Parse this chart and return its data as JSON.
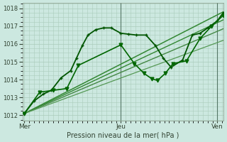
{
  "bg_color": "#cce8e0",
  "grid_color": "#aaccbb",
  "ylabel_ticks": [
    1012,
    1013,
    1014,
    1015,
    1016,
    1017,
    1018
  ],
  "xtick_labels": [
    "Mer",
    "Jeu",
    "Ven"
  ],
  "xtick_pos": [
    0.0,
    0.5,
    1.0
  ],
  "xlabel": "Pression niveau de la mer( hPa )",
  "ylim": [
    1011.7,
    1018.3
  ],
  "xlim": [
    -0.01,
    1.03
  ],
  "lines": [
    {
      "x": [
        0.0,
        0.05,
        0.1,
        0.14,
        0.19,
        0.24,
        0.27,
        0.3,
        0.33,
        0.37,
        0.41,
        0.45,
        0.5,
        0.54,
        0.58,
        0.63,
        0.68,
        0.72,
        0.76,
        0.82,
        0.87,
        0.91,
        0.95,
        1.0,
        1.03
      ],
      "y": [
        1012.1,
        1012.8,
        1013.2,
        1013.4,
        1014.1,
        1014.5,
        1015.2,
        1015.9,
        1016.5,
        1016.8,
        1016.9,
        1016.9,
        1016.6,
        1016.55,
        1016.5,
        1016.5,
        1015.9,
        1015.2,
        1014.7,
        1015.1,
        1016.5,
        1016.6,
        1016.9,
        1017.3,
        1017.75
      ],
      "color": "#005500",
      "lw": 1.3,
      "marker": "+",
      "ms": 3.5
    },
    {
      "x": [
        0.0,
        0.08,
        0.15,
        0.22,
        0.28,
        0.5,
        0.57,
        0.62,
        0.66,
        0.69,
        0.73,
        0.77,
        0.84,
        0.91,
        0.97,
        1.03
      ],
      "y": [
        1012.1,
        1013.3,
        1013.4,
        1013.5,
        1014.8,
        1015.95,
        1014.9,
        1014.35,
        1014.05,
        1013.95,
        1014.35,
        1014.9,
        1015.05,
        1016.3,
        1017.0,
        1017.6
      ],
      "color": "#006600",
      "lw": 1.2,
      "marker": "v",
      "ms": 3.5
    },
    {
      "x": [
        0.0,
        1.03
      ],
      "y": [
        1012.1,
        1017.8
      ],
      "color": "#338833",
      "lw": 1.1,
      "marker": null,
      "ms": 0
    },
    {
      "x": [
        0.0,
        1.03
      ],
      "y": [
        1012.1,
        1017.35
      ],
      "color": "#338833",
      "lw": 1.0,
      "marker": null,
      "ms": 0
    },
    {
      "x": [
        0.0,
        1.03
      ],
      "y": [
        1012.1,
        1016.85
      ],
      "color": "#448844",
      "lw": 1.0,
      "marker": null,
      "ms": 0
    },
    {
      "x": [
        0.0,
        1.03
      ],
      "y": [
        1012.1,
        1016.2
      ],
      "color": "#559955",
      "lw": 0.9,
      "marker": null,
      "ms": 0
    }
  ],
  "vlines": [
    0.5,
    1.0
  ],
  "vline_color": "#557766",
  "vline_lw": 0.8
}
